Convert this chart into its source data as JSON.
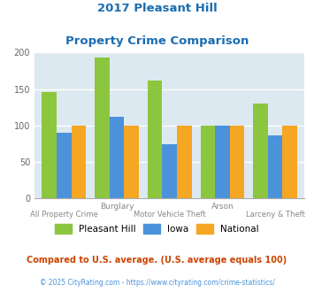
{
  "title_line1": "2017 Pleasant Hill",
  "title_line2": "Property Crime Comparison",
  "categories": [
    "All Property Crime",
    "Burglary",
    "Motor Vehicle Theft",
    "Arson",
    "Larceny & Theft"
  ],
  "pleasant_hill": [
    146,
    193,
    162,
    100,
    130
  ],
  "iowa": [
    90,
    112,
    75,
    100,
    86
  ],
  "national": [
    100,
    100,
    100,
    100,
    100
  ],
  "top_labels": {
    "1": "Burglary",
    "3": "Arson"
  },
  "bottom_labels": {
    "0": "All Property Crime",
    "2": "Motor Vehicle Theft",
    "4": "Larceny & Theft"
  },
  "color_ph": "#8CC63F",
  "color_iowa": "#4B92DB",
  "color_national": "#F5A623",
  "ylim": [
    0,
    200
  ],
  "yticks": [
    0,
    50,
    100,
    150,
    200
  ],
  "background_color": "#DCE9F0",
  "title_color": "#1B6CB0",
  "legend_labels": [
    "Pleasant Hill",
    "Iowa",
    "National"
  ],
  "note_text": "Compared to U.S. average. (U.S. average equals 100)",
  "footer_text": "© 2025 CityRating.com - https://www.cityrating.com/crime-statistics/",
  "note_color": "#CC4400",
  "footer_color": "#4B92DB"
}
